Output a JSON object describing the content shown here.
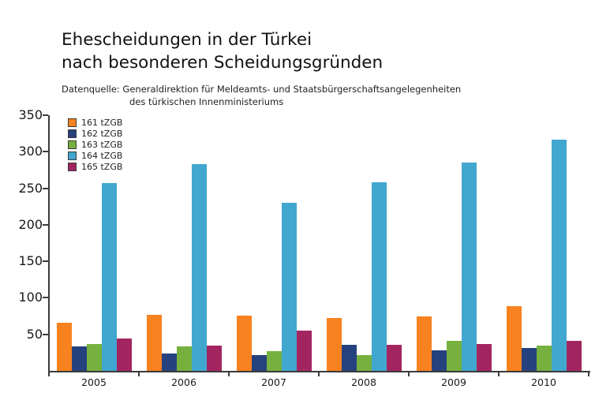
{
  "title": {
    "line1": "Ehescheidungen in der Türkei",
    "line2": "nach besonderen Scheidungsgründen"
  },
  "subtitle": {
    "line1": "Datenquelle: Generaldirektion für Meldeamts- und Staatsbürgerschaftsangelegenheiten",
    "line2": "des türkischen Innenministeriums"
  },
  "chart_data": {
    "type": "bar",
    "title": "Ehescheidungen in der Türkei nach besonderen Scheidungsgründen",
    "source_note": "Datenquelle: Generaldirektion für Meldeamts- und Staatsbürgerschaftsangelegenheiten des türkischen Innenministeriums",
    "categories": [
      "2005",
      "2006",
      "2007",
      "2008",
      "2009",
      "2010"
    ],
    "series": [
      {
        "name": "161 tZGB",
        "color": "#f8821f",
        "values": [
          66,
          77,
          76,
          72,
          75,
          89
        ]
      },
      {
        "name": "162 tZGB",
        "color": "#26427e",
        "values": [
          34,
          24,
          22,
          36,
          28,
          31
        ]
      },
      {
        "name": "163 tZGB",
        "color": "#76b13f",
        "values": [
          37,
          34,
          27,
          22,
          41,
          35
        ]
      },
      {
        "name": "164 tZGB",
        "color": "#42a7ce",
        "values": [
          257,
          283,
          230,
          258,
          285,
          317
        ]
      },
      {
        "name": "165 tZGB",
        "color": "#a22560",
        "values": [
          44,
          35,
          55,
          36,
          37,
          41
        ]
      }
    ],
    "xlabel": "",
    "ylabel": "",
    "ylim": [
      0,
      350
    ],
    "yticks": [
      50,
      100,
      150,
      200,
      250,
      300,
      350
    ],
    "grid": false,
    "legend_position": "upper-left"
  }
}
